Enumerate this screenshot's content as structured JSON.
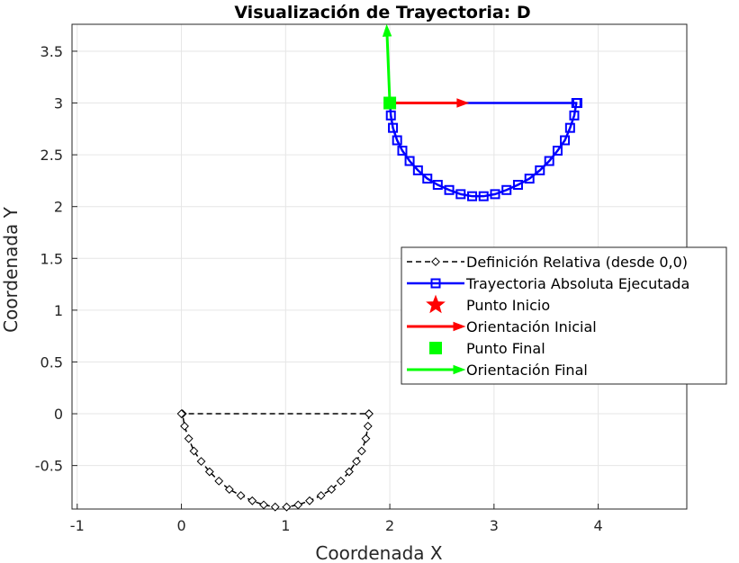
{
  "chart_data": {
    "type": "line",
    "title": "Visualización de Trayectoria: D",
    "xlabel": "Coordenada X",
    "ylabel": "Coordenada Y",
    "xlim": [
      -1.05,
      4.85
    ],
    "ylim": [
      -0.92,
      3.76
    ],
    "xticks": [
      -1,
      0,
      1,
      2,
      3,
      4
    ],
    "yticks": [
      -0.5,
      0,
      0.5,
      1,
      1.5,
      2,
      2.5,
      3,
      3.5
    ],
    "xtick_labels": [
      "-1",
      "0",
      "1",
      "2",
      "3",
      "4"
    ],
    "ytick_labels": [
      "-0.5",
      "0",
      "0.5",
      "1",
      "1.5",
      "2",
      "2.5",
      "3",
      "3.5"
    ],
    "grid": true,
    "legend_position": "right",
    "series": [
      {
        "name": "Definición Relativa (desde 0,0)",
        "color": "#000000",
        "style": "dashed",
        "marker": "diamond",
        "x": [
          1.8,
          1.79,
          1.77,
          1.73,
          1.68,
          1.61,
          1.53,
          1.44,
          1.34,
          1.23,
          1.12,
          1.01,
          0.9,
          0.79,
          0.68,
          0.57,
          0.46,
          0.36,
          0.27,
          0.19,
          0.12,
          0.07,
          0.03,
          0.01,
          0.0,
          1.8
        ],
        "y": [
          0.0,
          -0.12,
          -0.24,
          -0.36,
          -0.46,
          -0.56,
          -0.65,
          -0.73,
          -0.79,
          -0.84,
          -0.88,
          -0.9,
          -0.9,
          -0.88,
          -0.84,
          -0.79,
          -0.73,
          -0.65,
          -0.56,
          -0.46,
          -0.36,
          -0.24,
          -0.12,
          0.0,
          0.0,
          0.0
        ]
      },
      {
        "name": "Trayectoria Absoluta Ejecutada",
        "color": "#0000ff",
        "style": "solid",
        "marker": "square",
        "x": [
          2.0,
          2.01,
          2.03,
          2.07,
          2.12,
          2.19,
          2.27,
          2.36,
          2.46,
          2.57,
          2.68,
          2.79,
          2.9,
          3.01,
          3.12,
          3.23,
          3.34,
          3.44,
          3.53,
          3.61,
          3.68,
          3.73,
          3.77,
          3.79,
          3.8,
          2.0
        ],
        "y": [
          3.0,
          2.88,
          2.76,
          2.64,
          2.54,
          2.44,
          2.35,
          2.27,
          2.21,
          2.16,
          2.12,
          2.1,
          2.1,
          2.12,
          2.16,
          2.21,
          2.27,
          2.35,
          2.44,
          2.54,
          2.64,
          2.76,
          2.88,
          3.0,
          3.0,
          3.0
        ]
      },
      {
        "name": "Punto Inicio",
        "color": "#ff0000",
        "style": "none",
        "marker": "star",
        "x": [],
        "y": []
      },
      {
        "name": "Orientación Inicial",
        "color": "#ff0000",
        "style": "arrow",
        "marker": "none",
        "x": [
          2.0,
          2.75
        ],
        "y": [
          3.0,
          3.0
        ]
      },
      {
        "name": "Punto Final",
        "color": "#00ff00",
        "style": "none",
        "marker": "filled-square",
        "x": [
          2.0
        ],
        "y": [
          3.0
        ]
      },
      {
        "name": "Orientación Final",
        "color": "#00ff00",
        "style": "arrow",
        "marker": "none",
        "x": [
          2.0,
          1.97
        ],
        "y": [
          3.0,
          3.75
        ]
      }
    ]
  }
}
